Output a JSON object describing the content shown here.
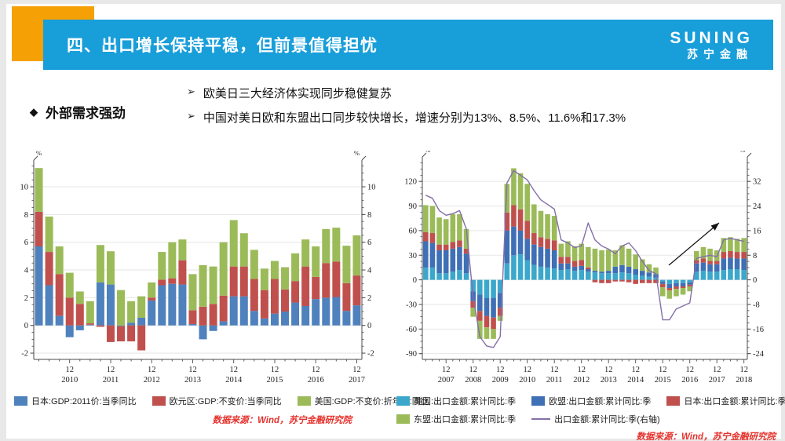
{
  "header": {
    "title": "四、出口增长保持平稳，但前景值得担忧",
    "logo_primary": "SUNING",
    "logo_secondary": "苏宁金融",
    "banner_color": "#189ED9",
    "accent_color": "#F5A005"
  },
  "bullets": {
    "lead_marker": "◆",
    "lead": "外部需求强劲",
    "item_marker": "➢",
    "items": [
      "欧美日三大经济体实现同步稳健复苏",
      "中国对美日欧和东盟出口同步较快增长，增速分别为13%、8.5%、11.6%和17.3%"
    ]
  },
  "chart_data": [
    {
      "type": "bar",
      "stacked": true,
      "title": "",
      "ylabel": "%",
      "ylabel_right": "%",
      "dec_tick_label": "12",
      "year_labels": [
        "2010",
        "2011",
        "2012",
        "2013",
        "2014",
        "2015",
        "2016",
        "2017"
      ],
      "categories": [
        "2010Q1",
        "2010Q2",
        "2010Q3",
        "2010Q4",
        "2011Q1",
        "2011Q2",
        "2011Q3",
        "2011Q4",
        "2012Q1",
        "2012Q2",
        "2012Q3",
        "2012Q4",
        "2013Q1",
        "2013Q2",
        "2013Q3",
        "2013Q4",
        "2014Q1",
        "2014Q2",
        "2014Q3",
        "2014Q4",
        "2015Q1",
        "2015Q2",
        "2015Q3",
        "2015Q4",
        "2016Q1",
        "2016Q2",
        "2016Q3",
        "2016Q4",
        "2017Q1",
        "2017Q2",
        "2017Q3",
        "2017Q4"
      ],
      "ylim": [
        -2.45,
        11.7
      ],
      "yticks": [
        -2,
        0,
        2,
        4,
        6,
        8,
        10
      ],
      "grid": true,
      "legend_position": "bottom",
      "series": [
        {
          "name": "日本:GDP:2011价:当季同比",
          "color": "#4F81BD",
          "values": [
            5.7,
            2.9,
            0.7,
            -0.85,
            -0.35,
            0.05,
            3.1,
            2.95,
            -0.05,
            0.2,
            0.55,
            1.8,
            2.9,
            3.0,
            2.95,
            0.1,
            -1.0,
            -0.4,
            0.3,
            2.1,
            2.1,
            1.05,
            0.5,
            0.85,
            1.0,
            1.65,
            1.4,
            1.9,
            2.0,
            2.05,
            1.05,
            1.45
          ]
        },
        {
          "name": "欧元区:GDP:不变价:当季同比",
          "color": "#C0504D",
          "values": [
            2.5,
            2.4,
            3.0,
            2.0,
            1.55,
            0.1,
            -0.1,
            -1.2,
            -1.1,
            -1.15,
            -1.8,
            0.2,
            0.4,
            0.4,
            1.75,
            1.0,
            1.35,
            1.55,
            1.85,
            2.15,
            2.15,
            2.3,
            2.05,
            2.5,
            1.6,
            1.55,
            2.85,
            1.6,
            2.5,
            2.55,
            2.0,
            2.15
          ]
        },
        {
          "name": "美国:GDP:不变价:折年数:同比",
          "color": "#9BBB59",
          "values": [
            3.15,
            2.55,
            2.0,
            1.8,
            0.9,
            1.6,
            2.7,
            2.4,
            2.55,
            1.55,
            1.55,
            1.1,
            2.0,
            2.6,
            1.5,
            2.6,
            3.0,
            2.7,
            3.85,
            3.35,
            2.4,
            2.1,
            1.55,
            1.3,
            1.6,
            2.0,
            1.95,
            2.2,
            2.45,
            2.45,
            2.7,
            2.9
          ]
        }
      ],
      "source_note": "数据来源：Wind，苏宁金融研究院",
      "source_color": "#E5322D"
    },
    {
      "type": "bar+line",
      "stacked": true,
      "title": "",
      "ylabel_left": "%",
      "ylabel_right": "%",
      "dec_tick_label": "12",
      "year_labels": [
        "2007",
        "2008",
        "2009",
        "2010",
        "2011",
        "2012",
        "2013",
        "2014",
        "2015",
        "2016",
        "2017",
        "2018"
      ],
      "categories": [
        "2007Q1",
        "2007Q2",
        "2007Q3",
        "2007Q4",
        "2008Q1",
        "2008Q2",
        "2008Q3",
        "2008Q4",
        "2009Q1",
        "2009Q2",
        "2009Q3",
        "2009Q4",
        "2010Q1",
        "2010Q2",
        "2010Q3",
        "2010Q4",
        "2011Q1",
        "2011Q2",
        "2011Q3",
        "2011Q4",
        "2012Q1",
        "2012Q2",
        "2012Q3",
        "2012Q4",
        "2013Q1",
        "2013Q2",
        "2013Q3",
        "2013Q4",
        "2014Q1",
        "2014Q2",
        "2014Q3",
        "2014Q4",
        "2015Q1",
        "2015Q2",
        "2015Q3",
        "2015Q4",
        "2016Q1",
        "2016Q2",
        "2016Q3",
        "2016Q4",
        "2017Q1",
        "2017Q2",
        "2017Q3",
        "2017Q4",
        "2018Q1",
        "2018Q2",
        "2018Q3",
        "2018Q4"
      ],
      "ylim_left": [
        -97,
        146
      ],
      "yticks_left": [
        -90,
        -60,
        -30,
        0,
        30,
        60,
        90,
        120
      ],
      "ylim_right": [
        -25.9,
        38.9
      ],
      "yticks_right": [
        -24,
        -16,
        -8,
        0,
        8,
        16,
        24,
        32
      ],
      "grid": true,
      "legend_position": "bottom",
      "annotation": {
        "type": "arrow",
        "direction": "up-right"
      },
      "series": [
        {
          "name": "美国:出口金额:累计同比:季",
          "color": "#3BA7CB",
          "values": [
            15,
            15,
            8,
            8,
            10,
            12,
            8,
            -14,
            -18,
            -22,
            -22,
            -16,
            20,
            30,
            31,
            24,
            18,
            16,
            15,
            14,
            12,
            13,
            11,
            12,
            10,
            9,
            8,
            8,
            8,
            9,
            8,
            6,
            5,
            4,
            3,
            -2,
            -5,
            -4,
            -4,
            -3,
            10,
            11,
            10,
            10,
            12,
            13,
            13,
            12
          ]
        },
        {
          "name": "欧盟:出口金额:累计同比:季",
          "color": "#3F6FB5",
          "values": [
            32,
            30,
            28,
            28,
            28,
            28,
            24,
            -12,
            -20,
            -22,
            -24,
            -18,
            40,
            35,
            29,
            26,
            25,
            24,
            23,
            22,
            8,
            7,
            5,
            5,
            3,
            2,
            2,
            3,
            8,
            9,
            8,
            7,
            6,
            5,
            4,
            -3,
            -5,
            -4,
            -4,
            -3,
            10,
            10,
            9,
            9,
            14,
            14,
            13,
            14
          ]
        },
        {
          "name": "日本:出口金额:累计同比:季",
          "color": "#C0504D",
          "values": [
            11,
            12,
            7,
            7,
            8,
            8,
            6,
            -8,
            -12,
            -14,
            -14,
            -10,
            22,
            26,
            26,
            22,
            14,
            12,
            12,
            12,
            8,
            8,
            7,
            7,
            2,
            -3,
            -4,
            -4,
            -2,
            -2,
            -3,
            -5,
            -4,
            -4,
            -4,
            -4,
            -3,
            -3,
            -2,
            -2,
            4,
            5,
            4,
            4,
            8,
            8,
            8,
            8
          ]
        },
        {
          "name": "东盟:出口金额:累计同比:季",
          "color": "#9BBB59",
          "values": [
            33,
            33,
            33,
            31,
            34,
            32,
            24,
            -11,
            -22,
            -14,
            -12,
            -6,
            35,
            45,
            44,
            45,
            35,
            32,
            30,
            30,
            16,
            19,
            18,
            20,
            25,
            27,
            26,
            26,
            20,
            24,
            22,
            18,
            14,
            10,
            8,
            -11,
            -10,
            -9,
            -8,
            -6,
            11,
            14,
            15,
            13,
            17,
            17,
            16,
            17
          ]
        }
      ],
      "line_series": {
        "name": "出口金额:累计同比:季(右轴)",
        "color": "#8470A8",
        "axis": "right",
        "values": [
          27.5,
          26.5,
          22.5,
          21,
          21.5,
          22.5,
          16.5,
          -5.5,
          -18.5,
          -21.5,
          -22,
          -18.5,
          31.5,
          35.5,
          34,
          32.5,
          29,
          26,
          24.5,
          23,
          13,
          12,
          10.5,
          11,
          18.5,
          13,
          11,
          10,
          8.5,
          11,
          12,
          9.5,
          6,
          3,
          2,
          -13,
          -13,
          -9.5,
          -8.5,
          -7.5,
          7,
          7.5,
          8,
          7.5,
          13,
          13.5,
          13,
          12.5
        ]
      },
      "source_note": "数据来源：Wind，苏宁金融研究院",
      "source_color": "#E5322D"
    }
  ]
}
